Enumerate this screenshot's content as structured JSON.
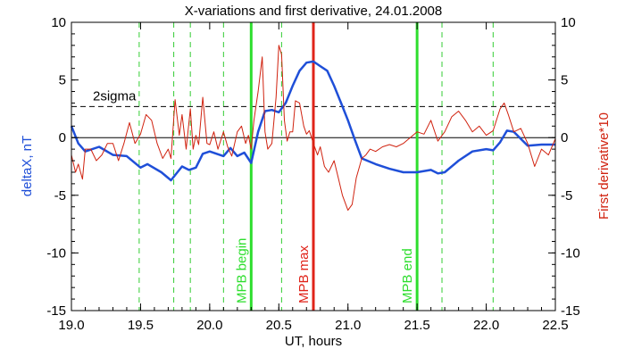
{
  "chart_data": {
    "type": "line",
    "title": "X-variations and first derivative, 24.01.2008",
    "xlabel": "UT, hours",
    "ylabel_left": "deltaX, nT",
    "ylabel_right": "First derivative*10",
    "xlim": [
      19.0,
      22.5
    ],
    "ylim_left": [
      -15,
      10
    ],
    "ylim_right": [
      -15,
      10
    ],
    "x_ticks": [
      "19.0",
      "19.5",
      "20.0",
      "20.5",
      "21.0",
      "21.5",
      "22.0",
      "22.5"
    ],
    "y_ticks_left": [
      "10",
      "5",
      "0",
      "-5",
      "-10",
      "-15"
    ],
    "y_ticks_right": [
      "10",
      "5",
      "0",
      "-5",
      "-10",
      "-15"
    ],
    "threshold": {
      "label": "2sigma",
      "value": 2.7
    },
    "colors": {
      "deltaX": "#1f4fd8",
      "derivative": "#d0220f",
      "mpb_markers": "#2ede2e",
      "mpb_max": "#e0241a",
      "dashed_green": "#33cc33"
    },
    "vlines_dashed": [
      19.49,
      19.74,
      19.86,
      20.1,
      20.52,
      21.68,
      22.05
    ],
    "vlines_solid": [
      {
        "x": 20.3,
        "label": "MPB begin",
        "color": "#2ede2e"
      },
      {
        "x": 20.75,
        "label": "MPB max",
        "color": "#e0241a"
      },
      {
        "x": 21.5,
        "label": "MPB end",
        "color": "#2ede2e"
      }
    ],
    "series": [
      {
        "name": "deltaX, nT",
        "color": "#1f4fd8",
        "x": [
          19.0,
          19.05,
          19.1,
          19.2,
          19.3,
          19.4,
          19.5,
          19.55,
          19.65,
          19.72,
          19.8,
          19.85,
          19.9,
          19.95,
          20.0,
          20.1,
          20.15,
          20.2,
          20.25,
          20.3,
          20.35,
          20.4,
          20.45,
          20.5,
          20.55,
          20.6,
          20.65,
          20.7,
          20.75,
          20.8,
          20.85,
          20.9,
          20.95,
          21.0,
          21.05,
          21.1,
          21.2,
          21.3,
          21.4,
          21.5,
          21.6,
          21.65,
          21.7,
          21.8,
          21.9,
          22.0,
          22.05,
          22.1,
          22.15,
          22.2,
          22.3,
          22.4,
          22.5
        ],
        "values": [
          1.0,
          -0.5,
          -1.2,
          -0.8,
          -1.5,
          -1.6,
          -2.6,
          -2.3,
          -3.0,
          -3.7,
          -2.5,
          -2.8,
          -2.6,
          -1.4,
          -1.2,
          -1.6,
          -0.9,
          -1.6,
          -1.3,
          -2.2,
          0.5,
          2.3,
          2.4,
          2.2,
          3.0,
          4.5,
          5.8,
          6.5,
          6.6,
          6.2,
          5.8,
          4.5,
          3.0,
          1.5,
          -0.2,
          -1.8,
          -2.3,
          -2.7,
          -3.0,
          -3.0,
          -2.8,
          -3.1,
          -3.0,
          -2.0,
          -1.2,
          -1.0,
          -1.1,
          -0.4,
          0.6,
          0.5,
          -0.7,
          -0.6,
          -0.6
        ]
      },
      {
        "name": "First derivative*10",
        "color": "#d0220f",
        "x": [
          19.0,
          19.03,
          19.05,
          19.08,
          19.1,
          19.14,
          19.18,
          19.22,
          19.26,
          19.3,
          19.34,
          19.38,
          19.42,
          19.46,
          19.5,
          19.54,
          19.58,
          19.62,
          19.66,
          19.7,
          19.72,
          19.75,
          19.78,
          19.8,
          19.83,
          19.86,
          19.88,
          19.9,
          19.92,
          19.95,
          19.98,
          20.0,
          20.03,
          20.06,
          20.1,
          20.13,
          20.16,
          20.2,
          20.23,
          20.26,
          20.28,
          20.3,
          20.32,
          20.35,
          20.38,
          20.4,
          20.42,
          20.45,
          20.48,
          20.5,
          20.52,
          20.54,
          20.56,
          20.58,
          20.6,
          20.62,
          20.65,
          20.68,
          20.7,
          20.72,
          20.75,
          20.78,
          20.8,
          20.83,
          20.86,
          20.9,
          20.93,
          20.96,
          21.0,
          21.03,
          21.06,
          21.1,
          21.13,
          21.16,
          21.2,
          21.25,
          21.3,
          21.35,
          21.4,
          21.45,
          21.5,
          21.55,
          21.6,
          21.65,
          21.7,
          21.75,
          21.8,
          21.85,
          21.9,
          21.95,
          22.0,
          22.05,
          22.1,
          22.13,
          22.16,
          22.2,
          22.25,
          22.3,
          22.35,
          22.4,
          22.45,
          22.5
        ],
        "values": [
          -1.5,
          -3.0,
          -2.3,
          -3.6,
          -1.0,
          -1.0,
          -2.0,
          -1.5,
          -0.5,
          -0.5,
          -2.0,
          -0.5,
          1.3,
          -0.5,
          0.3,
          2.0,
          1.5,
          -0.5,
          -1.8,
          -1.0,
          -1.8,
          3.3,
          0.2,
          2.0,
          -1.0,
          2.5,
          -1.0,
          0.2,
          -0.6,
          3.5,
          -0.5,
          -0.6,
          0.5,
          -1.0,
          0.5,
          -0.8,
          -1.6,
          0.5,
          1.0,
          -0.5,
          0.2,
          -1.0,
          1.5,
          4.0,
          7.0,
          0.5,
          -1.0,
          -0.5,
          3.5,
          8.0,
          7.2,
          1.5,
          -0.3,
          0.5,
          0.5,
          3.2,
          3.0,
          1.0,
          0.3,
          0.6,
          -0.5,
          -1.5,
          -0.8,
          -2.5,
          -3.0,
          -2.0,
          -3.5,
          -5.0,
          -6.3,
          -5.8,
          -3.5,
          -1.8,
          -1.5,
          -1.0,
          -1.2,
          -0.8,
          -0.6,
          -0.8,
          -0.5,
          0.0,
          0.5,
          0.3,
          1.5,
          -0.3,
          0.5,
          1.8,
          2.3,
          1.5,
          0.5,
          1.0,
          0.2,
          0.6,
          2.5,
          3.0,
          2.0,
          0.5,
          0.8,
          -0.5,
          -2.5,
          -1.0,
          -1.5,
          -0.1
        ]
      }
    ]
  }
}
